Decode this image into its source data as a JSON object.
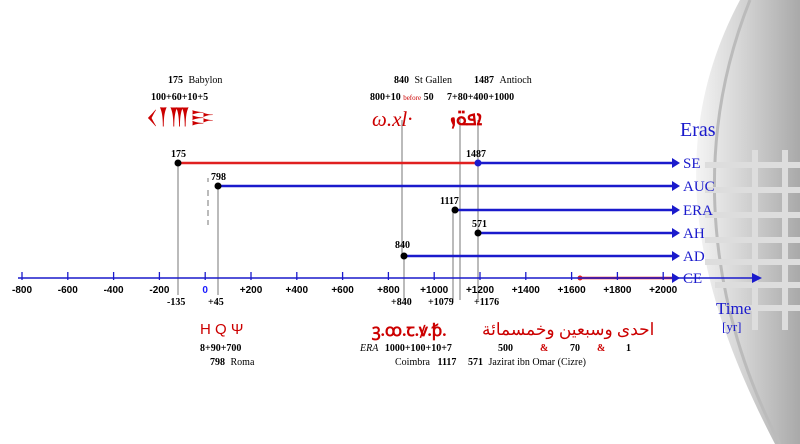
{
  "title": "Eras",
  "axis": {
    "unit_label": "Time",
    "unit": "[yr]",
    "ticks": [
      "-800",
      "-600",
      "-400",
      "-200",
      "0",
      "+200",
      "+400",
      "+600",
      "+800",
      "+1000",
      "+1200",
      "+1400",
      "+1600",
      "+1800",
      "+2000"
    ]
  },
  "eras": [
    {
      "name": "SE",
      "start_label": "175",
      "mark_label": "1487"
    },
    {
      "name": "AUC",
      "start_label": "798"
    },
    {
      "name": "ERA",
      "start_label": "1117"
    },
    {
      "name": "AH",
      "start_label": "571"
    },
    {
      "name": "AD",
      "start_label": "840"
    },
    {
      "name": "CE"
    }
  ],
  "axis_labels": {
    "minus135": "-135",
    "plus45": "+45",
    "plus840": "+840",
    "plus1079": "+1079",
    "plus1176": "+1176"
  },
  "top_examples": {
    "babylon": {
      "year": "175",
      "place": "Babylon",
      "formula": "100+60+10+5",
      "script": "𒌋𒐕𒐗𒄿"
    },
    "st_gallen": {
      "year": "840",
      "place": "St Gallen",
      "formula_a": "800+10",
      "formula_sub": "before",
      "formula_b": "50",
      "script": "ω.xl·"
    },
    "antioch": {
      "year": "1487",
      "place": "Antioch",
      "formula": "7+80+400+1000",
      "script": "ܐܦܘ̈ܙ"
    }
  },
  "bottom_examples": {
    "roma": {
      "script": "H Q Ψ",
      "formula": "8+90+700",
      "year": "798",
      "place": "Roma"
    },
    "coimbra": {
      "script": "ꝫ.ꝏ.ꞇ.ꝟ.ꝥ.",
      "era": "ERA",
      "formula": "1000+100+10+7",
      "place": "Coimbra",
      "year": "1117"
    },
    "cizre": {
      "script": "احدى وسبعين وخمسمائة",
      "n1": "500",
      "amp1": "&",
      "n2": "70",
      "amp2": "&",
      "n3": "1",
      "year": "571",
      "place": "Jazirat ibn Omar (Cizre)"
    }
  },
  "colors": {
    "red": "#e02020",
    "blue": "#1a1acc",
    "black": "#000000"
  }
}
